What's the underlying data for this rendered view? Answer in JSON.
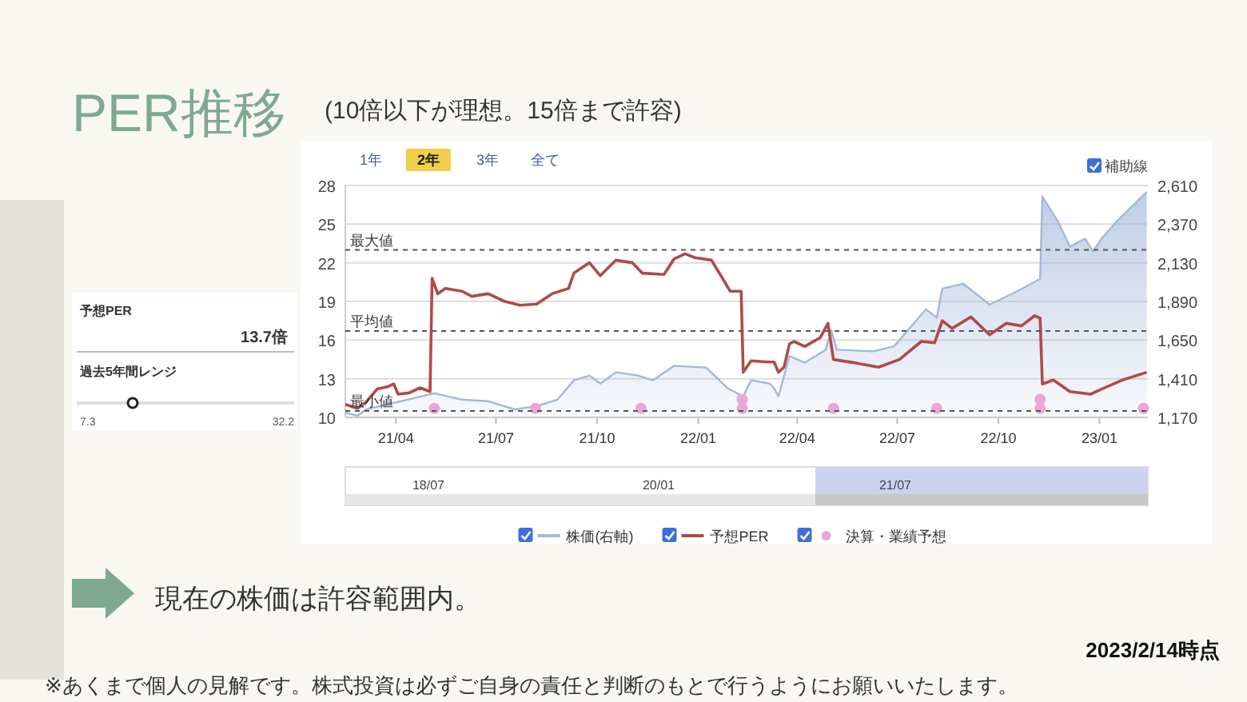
{
  "chart_data": {
    "type": "line",
    "title": "PER推移",
    "subtitle": "(10倍以下が理想。15倍まで許容)",
    "annotations": [
      "1年",
      "2年",
      "3年",
      "全て",
      "補助線",
      "予想PER",
      "13.7倍",
      "過去5年間レンジ",
      "7.3",
      "32.2",
      "18/07",
      "20/01",
      "21/07",
      "現在の株価は許容範囲内。",
      "2023/2/14時点",
      "※あくまで個人の見解です。株式投資は必ずご自身の責任と判断のもとで行うようにお願いいたします。"
    ],
    "xlim": [
      "2021-02-14",
      "2023-02-14"
    ],
    "xticks": [
      {
        "value": "2021-04",
        "label": "21/04"
      },
      {
        "value": "2021-07",
        "label": "21/07"
      },
      {
        "value": "2021-10",
        "label": "21/10"
      },
      {
        "value": "2022-01",
        "label": "22/01"
      },
      {
        "value": "2022-04",
        "label": "22/04"
      },
      {
        "value": "2022-07",
        "label": "22/07"
      },
      {
        "value": "2022-10",
        "label": "22/10"
      },
      {
        "value": "2023-01",
        "label": "23/01"
      }
    ],
    "ylim": [
      10,
      28
    ],
    "yticks": [
      10,
      13,
      16,
      19,
      22,
      25,
      28
    ],
    "y2lim": [
      1170,
      2610
    ],
    "y2ticks": [
      {
        "value": 1170,
        "label": "1,170"
      },
      {
        "value": 1410,
        "label": "1,410"
      },
      {
        "value": 1650,
        "label": "1,650"
      },
      {
        "value": 1890,
        "label": "1,890"
      },
      {
        "value": 2130,
        "label": "2,130"
      },
      {
        "value": 2370,
        "label": "2,370"
      },
      {
        "value": 2610,
        "label": "2,610"
      }
    ],
    "grid": "y",
    "legend": "bottom",
    "ref_lines": [
      {
        "axis": "y",
        "value": 23.0,
        "label": "最大値",
        "line_style": "dashed"
      },
      {
        "axis": "y",
        "value": 16.7,
        "label": "平均値",
        "line_style": "dashed"
      },
      {
        "axis": "y",
        "value": 10.5,
        "label": "最小値",
        "line_style": "dashed"
      }
    ],
    "series": [
      {
        "name": "株価(右軸)",
        "type": "area",
        "axis": "y2",
        "color": "#a3b8da",
        "x": [
          "2021-02-14",
          "2021-02-25",
          "2021-03-05",
          "2021-05-06",
          "2021-05-31",
          "2021-06-24",
          "2021-07-18",
          "2021-08-07",
          "2021-08-26",
          "2021-09-10",
          "2021-09-24",
          "2021-10-04",
          "2021-10-18",
          "2021-11-07",
          "2021-11-21",
          "2021-12-10",
          "2022-01-08",
          "2022-01-28",
          "2022-02-11",
          "2022-02-18",
          "2022-03-07",
          "2022-03-11",
          "2022-03-15",
          "2022-03-25",
          "2022-04-08",
          "2022-04-27",
          "2022-05-02",
          "2022-05-07",
          "2022-06-09",
          "2022-06-28",
          "2022-07-27",
          "2022-08-06",
          "2022-08-11",
          "2022-08-30",
          "2022-09-23",
          "2022-10-17",
          "2022-11-08",
          "2022-11-10",
          "2022-11-24",
          "2022-12-05",
          "2022-12-19",
          "2022-12-26",
          "2023-01-03",
          "2023-01-17",
          "2023-02-13"
        ],
        "values": [
          1200,
          1180,
          1220,
          1320,
          1280,
          1270,
          1220,
          1240,
          1280,
          1400,
          1430,
          1380,
          1450,
          1430,
          1400,
          1490,
          1480,
          1350,
          1300,
          1400,
          1380,
          1350,
          1300,
          1550,
          1510,
          1590,
          1710,
          1590,
          1580,
          1610,
          1840,
          1790,
          1970,
          2000,
          1870,
          1950,
          2030,
          2540,
          2390,
          2230,
          2280,
          2200,
          2280,
          2390,
          2570
        ]
      },
      {
        "name": "予想PER",
        "color": "#b04a4a",
        "x": [
          "2021-02-14",
          "2021-02-25",
          "2021-03-05",
          "2021-03-15",
          "2021-03-25",
          "2021-03-30",
          "2021-04-03",
          "2021-04-13",
          "2021-04-23",
          "2021-05-02",
          "2021-05-04",
          "2021-05-09",
          "2021-05-16",
          "2021-05-31",
          "2021-06-09",
          "2021-06-24",
          "2021-07-09",
          "2021-07-23",
          "2021-08-07",
          "2021-08-21",
          "2021-09-05",
          "2021-09-10",
          "2021-09-24",
          "2021-10-04",
          "2021-10-18",
          "2021-11-02",
          "2021-11-11",
          "2021-12-01",
          "2021-12-10",
          "2021-12-20",
          "2021-12-29",
          "2022-01-13",
          "2022-01-23",
          "2022-01-30",
          "2022-02-09",
          "2022-02-11",
          "2022-02-18",
          "2022-03-05",
          "2022-03-11",
          "2022-03-15",
          "2022-03-20",
          "2022-03-25",
          "2022-03-29",
          "2022-04-08",
          "2022-04-22",
          "2022-04-29",
          "2022-05-04",
          "2022-05-26",
          "2022-06-14",
          "2022-07-03",
          "2022-07-23",
          "2022-08-04",
          "2022-08-11",
          "2022-08-20",
          "2022-09-06",
          "2022-09-23",
          "2022-10-08",
          "2022-10-22",
          "2022-11-03",
          "2022-11-08",
          "2022-11-10",
          "2022-11-20",
          "2022-12-05",
          "2022-12-24",
          "2023-01-03",
          "2023-01-22",
          "2023-02-13"
        ],
        "values": [
          11.0,
          10.7,
          11.2,
          12.2,
          12.4,
          12.6,
          11.8,
          11.9,
          12.3,
          12.0,
          20.8,
          19.6,
          20.0,
          19.8,
          19.4,
          19.6,
          19.0,
          18.7,
          18.8,
          19.6,
          20.0,
          21.2,
          22.0,
          21.0,
          22.2,
          22.0,
          21.2,
          21.1,
          22.3,
          22.7,
          22.4,
          22.2,
          20.8,
          19.8,
          19.8,
          13.5,
          14.4,
          14.3,
          14.3,
          13.5,
          13.9,
          15.7,
          15.9,
          15.5,
          16.2,
          17.3,
          14.5,
          14.2,
          13.9,
          14.5,
          15.9,
          15.8,
          17.5,
          16.9,
          17.8,
          16.4,
          17.3,
          17.1,
          17.9,
          17.7,
          12.6,
          12.9,
          12.0,
          11.8,
          12.2,
          12.9,
          13.5
        ]
      },
      {
        "name": "決算・業績予想",
        "type": "scatter",
        "color": "#eaa6d6",
        "x": [
          "2021-05-06",
          "2021-08-06",
          "2021-11-10",
          "2022-02-10",
          "2022-02-10",
          "2022-05-04",
          "2022-08-06",
          "2022-11-08",
          "2022-11-08",
          "2023-02-10"
        ],
        "values": [
          10.7,
          10.7,
          10.7,
          10.7,
          11.4,
          10.7,
          10.7,
          10.7,
          11.4,
          10.7
        ]
      }
    ]
  }
}
